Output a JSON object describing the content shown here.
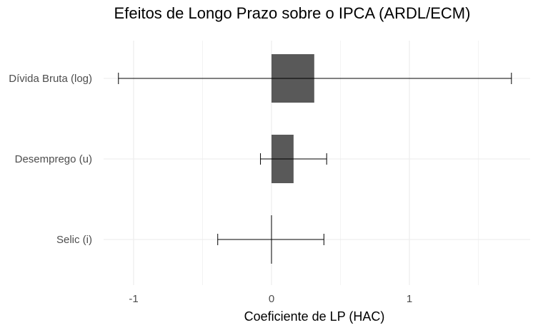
{
  "chart_data": {
    "type": "bar",
    "orientation": "horizontal",
    "title": "Efeitos de Longo Prazo sobre o IPCA (ARDL/ECM)",
    "xlabel": "Coeficiente de LP (HAC)",
    "ylabel": "",
    "categories": [
      "Dívida Bruta (log)",
      "Desemprego (u)",
      "Selic (i)"
    ],
    "values": [
      0.31,
      0.16,
      0.0
    ],
    "error_low": [
      -1.11,
      -0.08,
      -0.39
    ],
    "error_high": [
      1.74,
      0.4,
      0.38
    ],
    "xlim": [
      -1.2,
      1.9
    ],
    "xticks": [
      -1,
      0,
      1
    ],
    "xtick_labels": [
      "-1",
      "0",
      "1"
    ],
    "grid": true,
    "bar_color": "#595959",
    "grid_color": "#ebebeb"
  }
}
